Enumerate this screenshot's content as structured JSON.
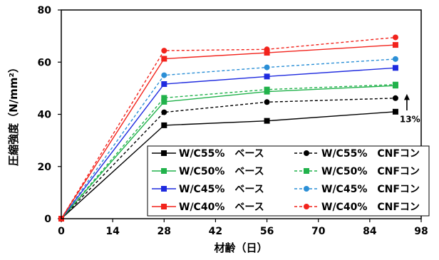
{
  "chart_data": {
    "type": "line",
    "xlabel": "材齢（日）",
    "ylabel": "圧縮強度（N/mm²）",
    "xlim": [
      0,
      98
    ],
    "ylim": [
      0,
      80
    ],
    "xticks": [
      "0",
      "14",
      "28",
      "42",
      "56",
      "70",
      "84",
      "98"
    ],
    "yticks": [
      "0",
      "20",
      "40",
      "60",
      "80"
    ],
    "grid": false,
    "legend_position": "bottom-right",
    "annotation": "13%",
    "series": [
      {
        "name": "W/C55%　ベース",
        "color": "#000000",
        "dashed": false,
        "marker": "square",
        "x": [
          0,
          28,
          56,
          91
        ],
        "y": [
          0,
          35.8,
          37.5,
          41.0
        ]
      },
      {
        "name": "W/C55%　CNFコン",
        "color": "#000000",
        "dashed": true,
        "marker": "circle",
        "x": [
          0,
          28,
          56,
          91
        ],
        "y": [
          0,
          40.8,
          44.7,
          46.2
        ]
      },
      {
        "name": "W/C50%　ベース",
        "color": "#21B24B",
        "dashed": false,
        "marker": "square",
        "x": [
          0,
          28,
          56,
          91
        ],
        "y": [
          0,
          44.8,
          48.7,
          51.0
        ]
      },
      {
        "name": "W/C50%　CNFコン",
        "color": "#21B24B",
        "dashed": true,
        "marker": "square",
        "x": [
          0,
          28,
          56,
          91
        ],
        "y": [
          0,
          46.3,
          49.5,
          51.4
        ]
      },
      {
        "name": "W/C45%　ベース",
        "color": "#1F2BDF",
        "dashed": false,
        "marker": "square",
        "x": [
          0,
          28,
          56,
          91
        ],
        "y": [
          0,
          51.6,
          54.5,
          57.8
        ]
      },
      {
        "name": "W/C45%　CNFコン",
        "color": "#2B8FD6",
        "dashed": true,
        "marker": "circle",
        "x": [
          0,
          28,
          56,
          91
        ],
        "y": [
          0,
          55.0,
          58.0,
          61.2
        ]
      },
      {
        "name": "W/C40%　ベース",
        "color": "#F2231C",
        "dashed": false,
        "marker": "square",
        "x": [
          0,
          28,
          56,
          91
        ],
        "y": [
          0,
          61.3,
          63.6,
          66.6
        ]
      },
      {
        "name": "W/C40%　CNFコン",
        "color": "#F2231C",
        "dashed": true,
        "marker": "circle",
        "x": [
          0,
          28,
          56,
          91
        ],
        "y": [
          0,
          64.4,
          64.9,
          69.5
        ]
      }
    ]
  }
}
